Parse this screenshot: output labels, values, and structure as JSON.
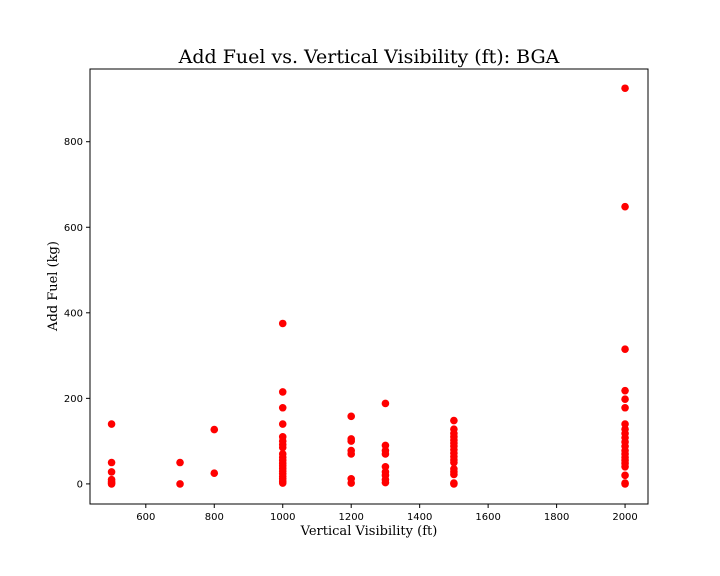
{
  "chart_data": {
    "type": "scatter",
    "title": "Add Fuel vs. Vertical Visibility (ft): BGA",
    "xlabel": "Vertical Visibility (ft)",
    "ylabel": "Add Fuel (kg)",
    "xlim": [
      437,
      2067
    ],
    "ylim": [
      -47,
      970
    ],
    "xticks": [
      600,
      800,
      1000,
      1200,
      1400,
      1600,
      1800,
      2000
    ],
    "yticks": [
      0,
      200,
      400,
      600,
      800
    ],
    "grid": false,
    "marker_color": "#ff0000",
    "series": [
      {
        "points": [
          [
            500,
            140
          ],
          [
            500,
            50
          ],
          [
            500,
            28
          ],
          [
            500,
            10
          ],
          [
            500,
            5
          ],
          [
            500,
            2
          ],
          [
            500,
            0
          ],
          [
            700,
            50
          ],
          [
            700,
            0
          ],
          [
            800,
            127
          ],
          [
            800,
            25
          ],
          [
            1000,
            375
          ],
          [
            1000,
            215
          ],
          [
            1000,
            178
          ],
          [
            1000,
            140
          ],
          [
            1000,
            110
          ],
          [
            1000,
            100
          ],
          [
            1000,
            92
          ],
          [
            1000,
            85
          ],
          [
            1000,
            70
          ],
          [
            1000,
            62
          ],
          [
            1000,
            55
          ],
          [
            1000,
            48
          ],
          [
            1000,
            42
          ],
          [
            1000,
            36
          ],
          [
            1000,
            30
          ],
          [
            1000,
            24
          ],
          [
            1000,
            18
          ],
          [
            1000,
            12
          ],
          [
            1000,
            6
          ],
          [
            1000,
            2
          ],
          [
            1200,
            158
          ],
          [
            1200,
            105
          ],
          [
            1200,
            100
          ],
          [
            1200,
            78
          ],
          [
            1200,
            70
          ],
          [
            1200,
            12
          ],
          [
            1200,
            2
          ],
          [
            1300,
            188
          ],
          [
            1300,
            90
          ],
          [
            1300,
            78
          ],
          [
            1300,
            70
          ],
          [
            1300,
            40
          ],
          [
            1300,
            28
          ],
          [
            1300,
            20
          ],
          [
            1300,
            10
          ],
          [
            1300,
            3
          ],
          [
            1500,
            148
          ],
          [
            1500,
            128
          ],
          [
            1500,
            118
          ],
          [
            1500,
            110
          ],
          [
            1500,
            102
          ],
          [
            1500,
            95
          ],
          [
            1500,
            88
          ],
          [
            1500,
            80
          ],
          [
            1500,
            72
          ],
          [
            1500,
            64
          ],
          [
            1500,
            56
          ],
          [
            1500,
            50
          ],
          [
            1500,
            35
          ],
          [
            1500,
            28
          ],
          [
            1500,
            22
          ],
          [
            1500,
            2
          ],
          [
            1500,
            0
          ],
          [
            2000,
            925
          ],
          [
            2000,
            648
          ],
          [
            2000,
            315
          ],
          [
            2000,
            218
          ],
          [
            2000,
            198
          ],
          [
            2000,
            178
          ],
          [
            2000,
            140
          ],
          [
            2000,
            128
          ],
          [
            2000,
            118
          ],
          [
            2000,
            108
          ],
          [
            2000,
            98
          ],
          [
            2000,
            88
          ],
          [
            2000,
            78
          ],
          [
            2000,
            70
          ],
          [
            2000,
            62
          ],
          [
            2000,
            55
          ],
          [
            2000,
            48
          ],
          [
            2000,
            40
          ],
          [
            2000,
            20
          ],
          [
            2000,
            2
          ],
          [
            2000,
            0
          ]
        ]
      }
    ]
  }
}
